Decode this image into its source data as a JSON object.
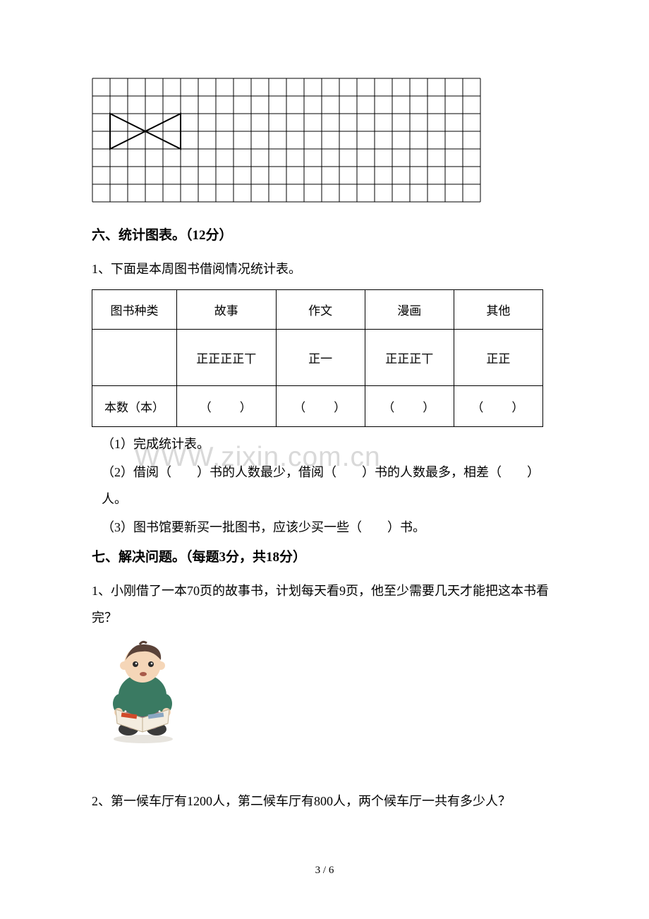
{
  "grid": {
    "cols": 22,
    "rows": 7,
    "cell": 25,
    "border_color": "#000000",
    "shape_stroke": "#000000",
    "shape_fill": "none",
    "shape_points_units": [
      [
        1,
        4
      ],
      [
        3,
        2
      ],
      [
        5,
        4
      ],
      [
        3,
        4
      ],
      [
        1,
        2
      ],
      [
        3,
        4
      ]
    ],
    "shape_line1": [
      [
        1,
        2
      ],
      [
        3,
        4
      ]
    ],
    "shape_line2": [
      [
        1,
        4
      ],
      [
        3,
        2
      ]
    ]
  },
  "section6": {
    "heading": "六、统计图表。（12分）",
    "q1_intro": "1、下面是本周图书借阅情况统计表。",
    "table": {
      "row1": [
        "图书种类",
        "故事",
        "作文",
        "漫画",
        "其他"
      ],
      "row2": [
        "",
        "正正正正丅",
        "正一",
        "正正正丅",
        "正正"
      ],
      "row3_label": "本数（本）",
      "row3_blank": "（　　）"
    },
    "sub1": "（1）完成统计表。",
    "sub2": "（2）借阅（　　）书的人数最少，借阅（　　）书的人数最多，相差（　　）人。",
    "sub3": "（3）图书馆要新买一批图书，应该少买一些（　　）书。"
  },
  "section7": {
    "heading": "七、解决问题。（每题3分，共18分）",
    "q1": "1、小刚借了一本70页的故事书，计划每天看9页，他至少需要几天才能把这本书看完？",
    "q2": "2、第一候车厅有1200人，第二候车厅有800人，两个候车厅一共有多少人？"
  },
  "illustration": {
    "bg_color": "#ffffff",
    "hair_color": "#5a4238",
    "skin_color": "#f5d6b8",
    "shirt_color": "#3a7a62",
    "pants_color": "#7a5a7a",
    "shoe_color": "#3a3a3a",
    "paper_color": "#f4ede0",
    "paper_accent": "#d04a2a"
  },
  "watermark": "WWW.zixin.com.cn",
  "page_number": "3 / 6"
}
